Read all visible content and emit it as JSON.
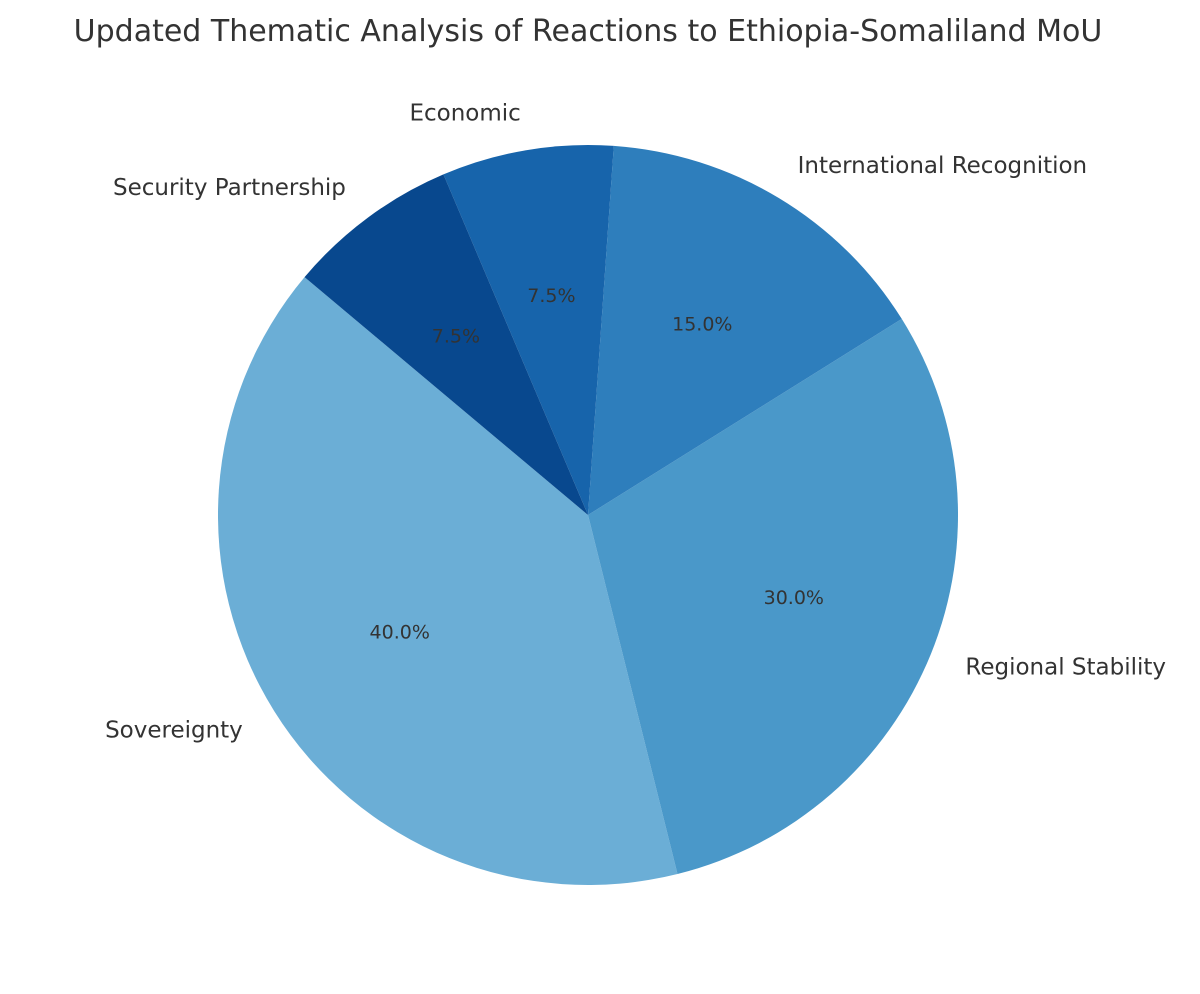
{
  "chart_data": {
    "type": "pie",
    "title": "Updated Thematic Analysis of Reactions to Ethiopia-Somaliland MoU",
    "start_angle_deg": 140,
    "direction": "counterclockwise",
    "slices": [
      {
        "label": "Sovereignty",
        "value": 40.0,
        "pct_label": "40.0%",
        "color": "#6baed6"
      },
      {
        "label": "Regional Stability",
        "value": 30.0,
        "pct_label": "30.0%",
        "color": "#4a98c9"
      },
      {
        "label": "International Recognition",
        "value": 15.0,
        "pct_label": "15.0%",
        "color": "#2e7ebc"
      },
      {
        "label": "Economic",
        "value": 7.5,
        "pct_label": "7.5%",
        "color": "#1764ab"
      },
      {
        "label": "Security Partnership",
        "value": 7.5,
        "pct_label": "7.5%",
        "color": "#08488e"
      }
    ]
  }
}
